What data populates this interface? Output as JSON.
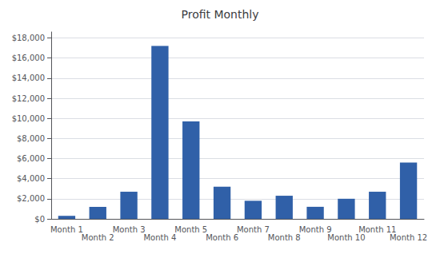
{
  "chart_data": {
    "type": "bar",
    "title": "Profit Monthly",
    "categories": [
      "Month 1",
      "Month 2",
      "Month 3",
      "Month 4",
      "Month 5",
      "Month 6",
      "Month 7",
      "Month 8",
      "Month 9",
      "Month 10",
      "Month 11",
      "Month 12"
    ],
    "values": [
      300,
      1200,
      2700,
      17200,
      9700,
      3200,
      1800,
      2300,
      1200,
      2000,
      2700,
      5600
    ],
    "color": "#3060A8",
    "ylim": [
      0,
      18600
    ],
    "yticks": [
      {
        "value": 0,
        "label": "$0"
      },
      {
        "value": 2000,
        "label": "$2,000"
      },
      {
        "value": 4000,
        "label": "$4,000"
      },
      {
        "value": 6000,
        "label": "$6,000"
      },
      {
        "value": 8000,
        "label": "$8,000"
      },
      {
        "value": 10000,
        "label": "$10,000"
      },
      {
        "value": 12000,
        "label": "$12,000"
      },
      {
        "value": 14000,
        "label": "$14,000"
      },
      {
        "value": 16000,
        "label": "$16,000"
      },
      {
        "value": 18000,
        "label": "$18,000"
      }
    ],
    "grid": true
  }
}
